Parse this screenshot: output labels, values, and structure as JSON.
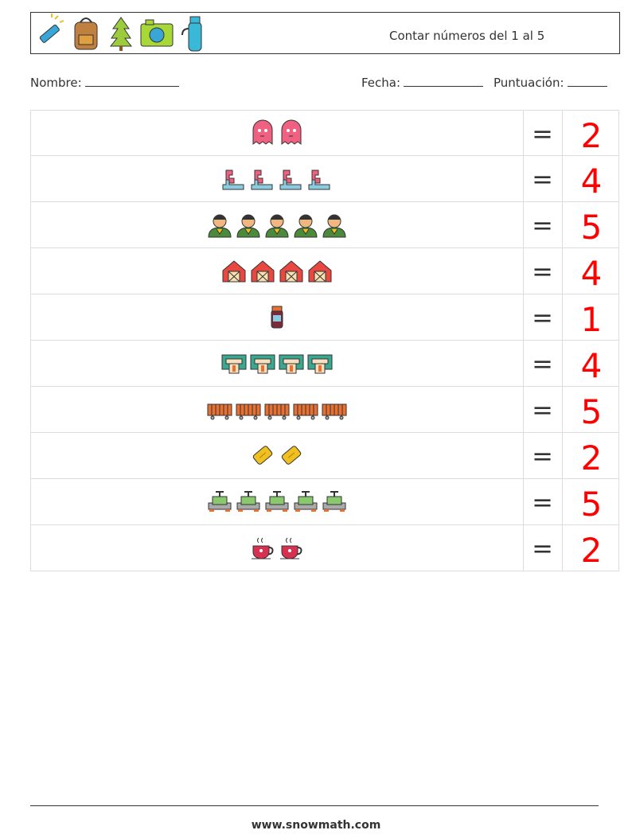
{
  "header": {
    "title": "Contar números del 1 al 5"
  },
  "fields": {
    "name": "Nombre:",
    "date": "Fecha:",
    "score": "Puntuación:"
  },
  "rows": [
    {
      "equals": "=",
      "answer": 2
    },
    {
      "equals": "=",
      "answer": 4
    },
    {
      "equals": "=",
      "answer": 5
    },
    {
      "equals": "=",
      "answer": 4
    },
    {
      "equals": "=",
      "answer": 1
    },
    {
      "equals": "=",
      "answer": 4
    },
    {
      "equals": "=",
      "answer": 5
    },
    {
      "equals": "=",
      "answer": 2
    },
    {
      "equals": "=",
      "answer": 5
    },
    {
      "equals": "=",
      "answer": 2
    }
  ],
  "footer": "www.snowmath.com"
}
